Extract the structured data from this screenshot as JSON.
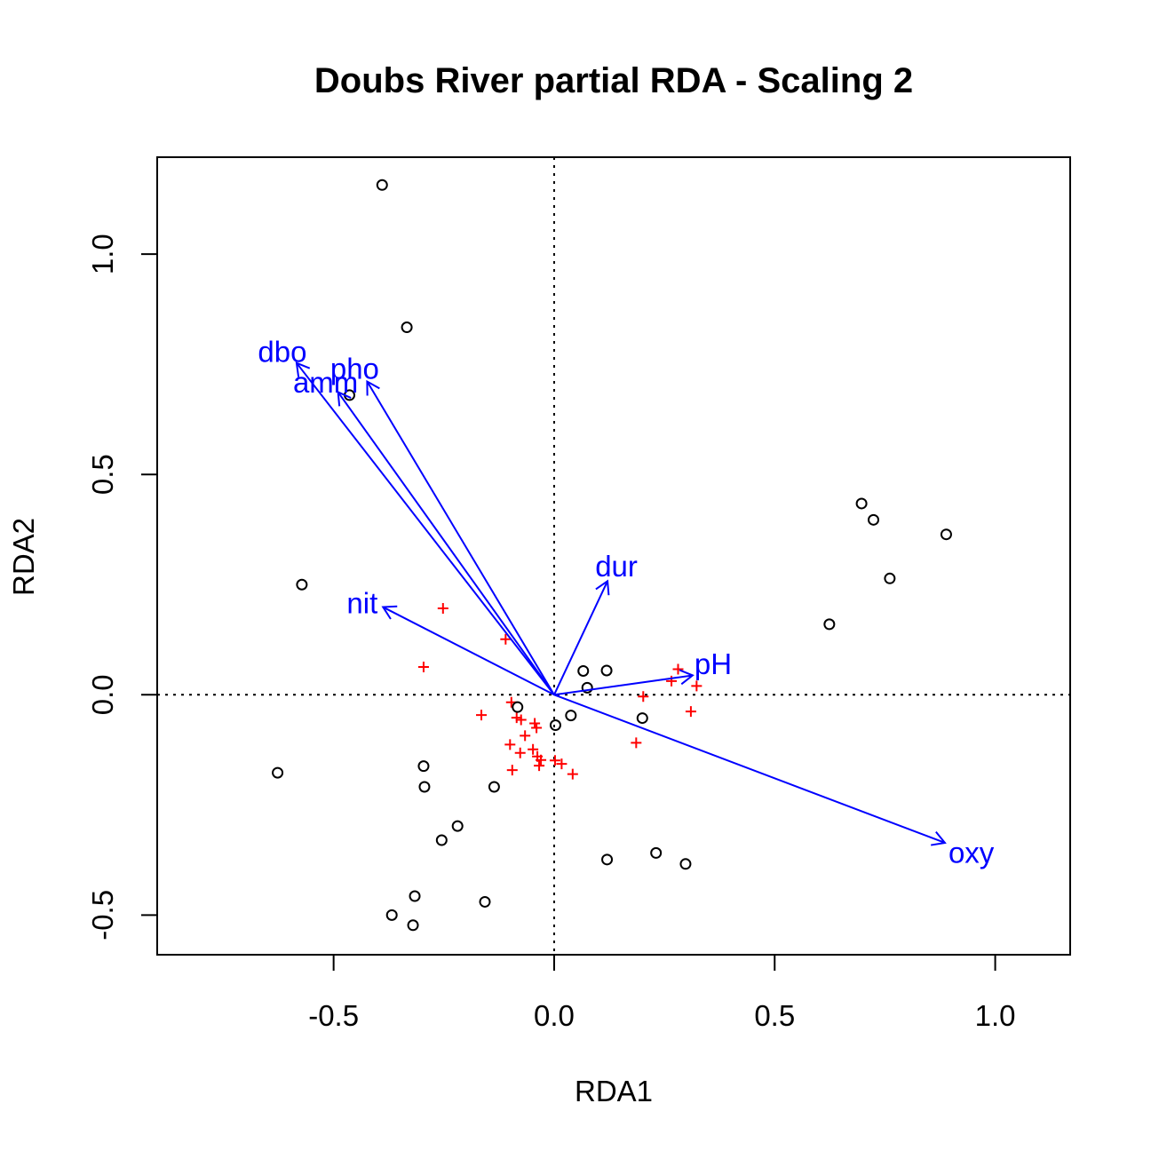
{
  "chart_data": {
    "type": "scatter",
    "title": "Doubs River partial RDA - Scaling 2",
    "xlabel": "RDA1",
    "ylabel": "RDA2",
    "xlim": [
      -0.9,
      1.17
    ],
    "ylim": [
      -0.59,
      1.22
    ],
    "x_ticks": [
      -0.5,
      0.0,
      0.5,
      1.0
    ],
    "x_tick_labels": [
      "-0.5",
      "0.0",
      "0.5",
      "1.0"
    ],
    "y_ticks": [
      -0.5,
      0.0,
      0.5,
      1.0
    ],
    "y_tick_labels": [
      "-0.5",
      "0.0",
      "0.5",
      "1.0"
    ],
    "reference_lines": {
      "x": 0,
      "y": 0,
      "style": "dotted"
    },
    "colors": {
      "sites": "#000000",
      "species": "#ff0000",
      "arrows": "#0000ff"
    },
    "site_scores": [
      [
        -0.39,
        1.157
      ],
      [
        -0.334,
        0.834
      ],
      [
        -0.464,
        0.68
      ],
      [
        -0.572,
        0.25
      ],
      [
        -0.627,
        -0.177
      ],
      [
        -0.296,
        -0.162
      ],
      [
        -0.294,
        -0.209
      ],
      [
        -0.219,
        -0.298
      ],
      [
        -0.255,
        -0.33
      ],
      [
        -0.136,
        -0.209
      ],
      [
        -0.083,
        -0.028
      ],
      [
        0.003,
        -0.069
      ],
      [
        0.038,
        -0.047
      ],
      [
        0.066,
        0.054
      ],
      [
        0.075,
        0.016
      ],
      [
        0.119,
        0.055
      ],
      [
        0.2,
        -0.053
      ],
      [
        0.12,
        -0.374
      ],
      [
        0.231,
        -0.359
      ],
      [
        0.298,
        -0.384
      ],
      [
        -0.157,
        -0.47
      ],
      [
        -0.316,
        -0.457
      ],
      [
        -0.368,
        -0.5
      ],
      [
        -0.32,
        -0.523
      ],
      [
        0.624,
        0.16
      ],
      [
        0.697,
        0.434
      ],
      [
        0.724,
        0.397
      ],
      [
        0.761,
        0.264
      ],
      [
        0.889,
        0.364
      ]
    ],
    "species_scores": [
      [
        -0.252,
        0.196
      ],
      [
        -0.296,
        0.063
      ],
      [
        -0.11,
        0.126
      ],
      [
        -0.165,
        -0.046
      ],
      [
        -0.097,
        -0.017
      ],
      [
        -0.085,
        -0.052
      ],
      [
        -0.075,
        -0.057
      ],
      [
        -0.066,
        -0.093
      ],
      [
        -0.044,
        -0.065
      ],
      [
        -0.04,
        -0.075
      ],
      [
        -0.1,
        -0.113
      ],
      [
        -0.077,
        -0.132
      ],
      [
        -0.048,
        -0.124
      ],
      [
        -0.038,
        -0.14
      ],
      [
        -0.03,
        -0.148
      ],
      [
        -0.034,
        -0.161
      ],
      [
        -0.095,
        -0.171
      ],
      [
        0.002,
        -0.149
      ],
      [
        0.017,
        -0.157
      ],
      [
        0.042,
        -0.18
      ],
      [
        0.186,
        -0.109
      ],
      [
        0.202,
        -0.004
      ],
      [
        0.266,
        0.031
      ],
      [
        0.281,
        0.058
      ],
      [
        0.323,
        0.02
      ],
      [
        0.31,
        -0.038
      ]
    ],
    "biplot_arrows": [
      {
        "label": "dbo",
        "x": -0.584,
        "y": 0.753
      },
      {
        "label": "pho",
        "x": -0.424,
        "y": 0.711
      },
      {
        "label": "amm",
        "x": -0.49,
        "y": 0.687
      },
      {
        "label": "nit",
        "x": -0.388,
        "y": 0.199
      },
      {
        "label": "dur",
        "x": 0.121,
        "y": 0.258
      },
      {
        "label": "pH",
        "x": 0.314,
        "y": 0.044
      },
      {
        "label": "oxy",
        "x": 0.886,
        "y": -0.336
      }
    ]
  }
}
